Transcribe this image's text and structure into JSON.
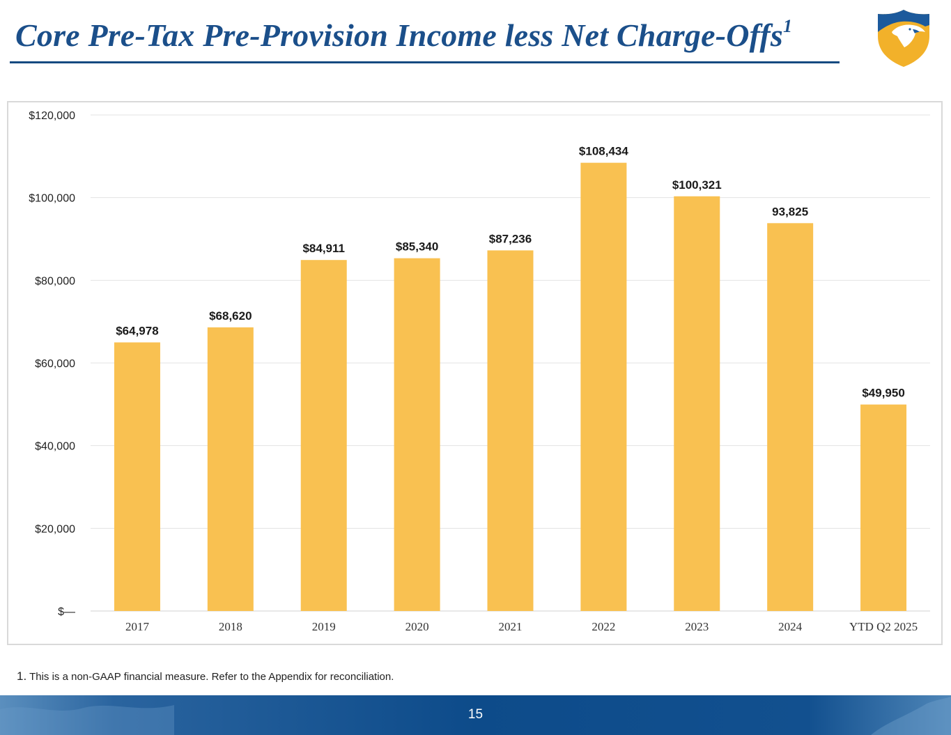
{
  "slide": {
    "title": "Core Pre-Tax Pre-Provision Income less Net Charge-Offs",
    "title_superscript": "1",
    "logo_icon": "eagle-shield-icon",
    "footnote_number": "1.",
    "footnote_text": " This is a non-GAAP financial measure. Refer to the Appendix for reconciliation.",
    "page_number": "15"
  },
  "colors": {
    "title": "#1b4f8a",
    "bar": "#f9c151",
    "footer_blue": "#0d4b8a",
    "logo_blue": "#1c5a9c",
    "logo_gold": "#f2b12a"
  },
  "chart_data": {
    "type": "bar",
    "categories": [
      "2017",
      "2018",
      "2019",
      "2020",
      "2021",
      "2022",
      "2023",
      "2024",
      "YTD Q2 2025"
    ],
    "values": [
      64978,
      68620,
      84911,
      85340,
      87236,
      108434,
      100321,
      93825,
      49950
    ],
    "data_labels": [
      "$64,978",
      "$68,620",
      "$84,911",
      "$85,340",
      "$87,236",
      "$108,434",
      "$100,321",
      "93,825",
      "$49,950"
    ],
    "y_ticks": [
      0,
      20000,
      40000,
      60000,
      80000,
      100000,
      120000
    ],
    "y_tick_labels": [
      "$—",
      "$20,000",
      "$40,000",
      "$60,000",
      "$80,000",
      "$100,000",
      "$120,000"
    ],
    "ylim": [
      0,
      120000
    ],
    "grid": true,
    "legend": "none",
    "title": "",
    "xlabel": "",
    "ylabel": ""
  }
}
